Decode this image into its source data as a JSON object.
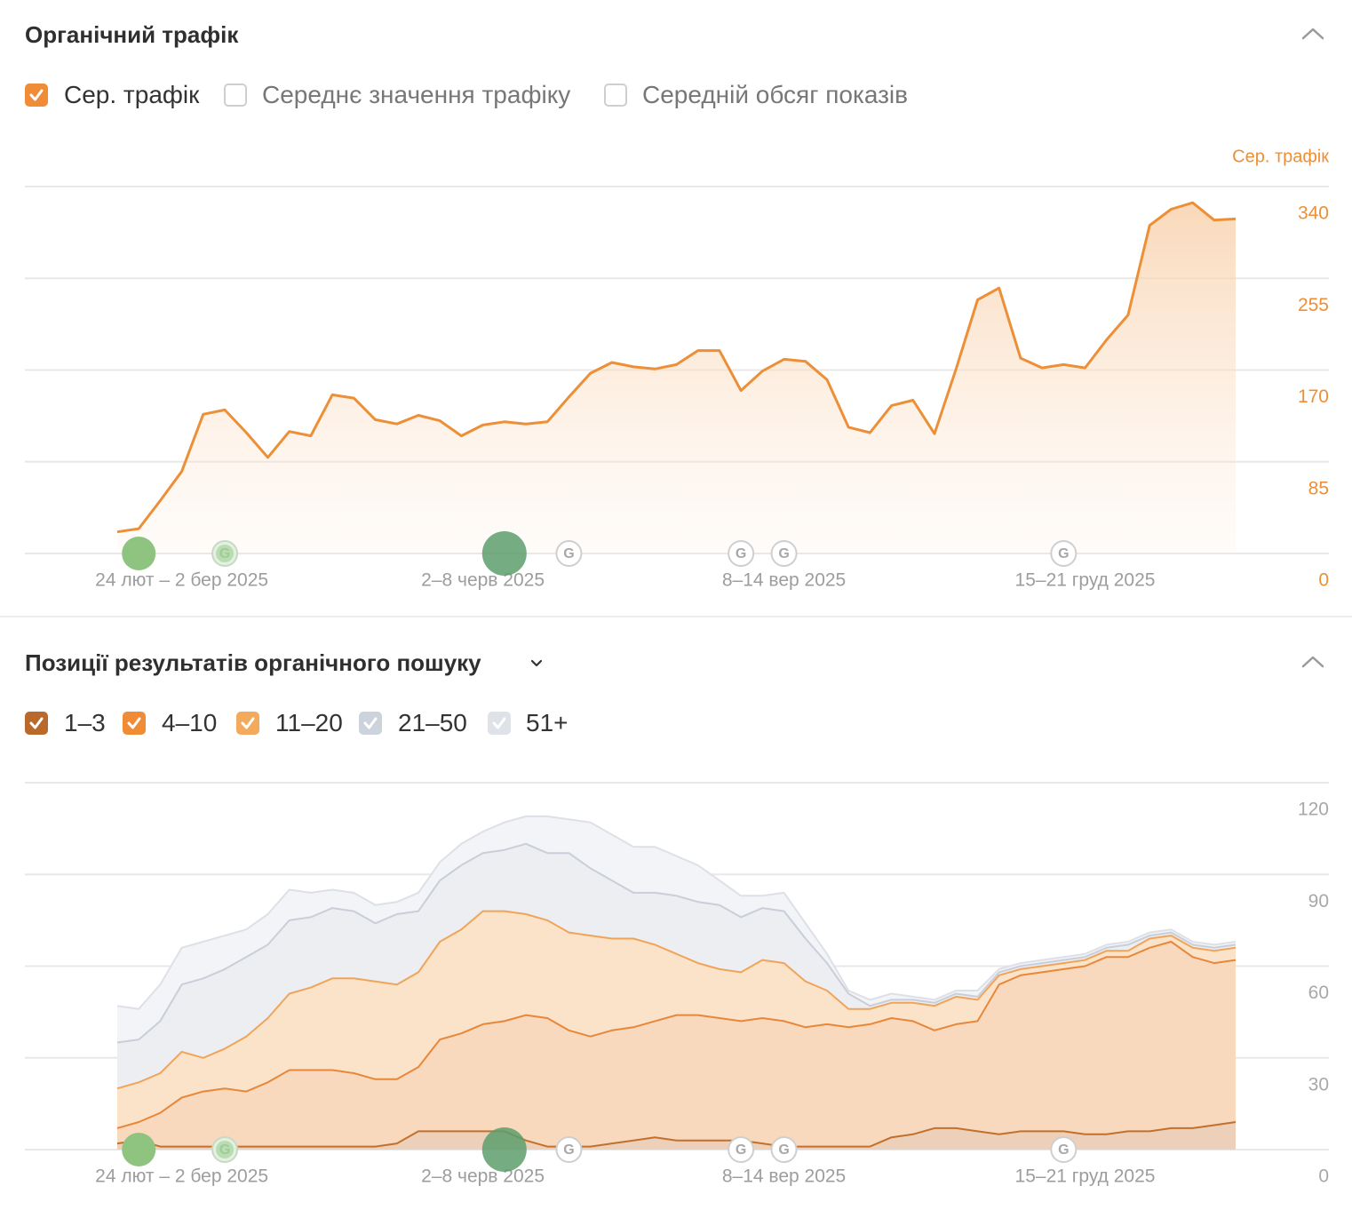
{
  "traffic_section": {
    "title": "Органічний трафік",
    "toggles": [
      {
        "label": "Сер. трафік",
        "checked": true,
        "color": "#ef8c35"
      },
      {
        "label": "Середнє значення трафіку",
        "checked": false
      },
      {
        "label": "Середній обсяг показів",
        "checked": false
      }
    ],
    "collapse_icon": "chevron-up-icon"
  },
  "positions_section": {
    "title": "Позиції результатів органічного пошуку",
    "dropdown_icon": "chevron-down-icon",
    "collapse_icon": "chevron-up-icon",
    "legend": [
      {
        "label": "1–3",
        "checked": true,
        "color": "#b9692b"
      },
      {
        "label": "4–10",
        "checked": true,
        "color": "#ef8c35"
      },
      {
        "label": "11–20",
        "checked": true,
        "color": "#f3aa5c"
      },
      {
        "label": "21–50",
        "checked": true,
        "color": "#cdd3dc"
      },
      {
        "label": "51+",
        "checked": true,
        "color": "#dfe3e9"
      }
    ]
  },
  "chart_data": [
    {
      "type": "area",
      "ylabel": "Сер. трафік",
      "ylim": [
        0,
        340
      ],
      "y_ticks": [
        "0",
        "85",
        "170",
        "255",
        "340"
      ],
      "grid": true,
      "color": "#ed8f36",
      "x_tick_labels": [
        {
          "index": 3,
          "label": "24 лют – 2 бер 2025"
        },
        {
          "index": 17,
          "label": "2–8 черв 2025"
        },
        {
          "index": 31,
          "label": "8–14 вер 2025"
        },
        {
          "index": 45,
          "label": "15–21 груд 2025"
        }
      ],
      "values": [
        20,
        23,
        49,
        76,
        129,
        133,
        112,
        89,
        113,
        109,
        147,
        144,
        124,
        120,
        128,
        123,
        109,
        119,
        122,
        120,
        122,
        145,
        167,
        177,
        173,
        171,
        175,
        188,
        188,
        151,
        169,
        180,
        178,
        161,
        117,
        112,
        137,
        142,
        111,
        171,
        235,
        246,
        181,
        172,
        175,
        172,
        198,
        221,
        304,
        319,
        325,
        309,
        310
      ],
      "annotations": [
        {
          "index": 1,
          "type": "green-dot"
        },
        {
          "index": 5,
          "type": "google-update-faded"
        },
        {
          "index": 18,
          "type": "green-dot-large"
        },
        {
          "index": 21,
          "type": "google-update"
        },
        {
          "index": 29,
          "type": "google-update"
        },
        {
          "index": 31,
          "type": "google-update"
        },
        {
          "index": 44,
          "type": "google-update"
        }
      ]
    },
    {
      "type": "area",
      "stacked": true,
      "ylim": [
        0,
        120
      ],
      "y_ticks": [
        "0",
        "30",
        "60",
        "90",
        "120"
      ],
      "grid": true,
      "x_tick_labels": [
        {
          "index": 3,
          "label": "24 лют – 2 бер 2025"
        },
        {
          "index": 17,
          "label": "2–8 черв 2025"
        },
        {
          "index": 31,
          "label": "8–14 вер 2025"
        },
        {
          "index": 45,
          "label": "15–21 груд 2025"
        }
      ],
      "series": [
        {
          "name": "1–3",
          "fill": "#ecd0b9",
          "line": "#c2702c",
          "values": [
            2,
            3,
            1,
            1,
            1,
            1,
            1,
            1,
            1,
            1,
            1,
            1,
            1,
            2,
            6,
            6,
            6,
            6,
            6,
            3,
            1,
            1,
            1,
            2,
            3,
            4,
            3,
            3,
            3,
            3,
            2,
            1,
            1,
            1,
            1,
            1,
            4,
            5,
            7,
            7,
            6,
            5,
            6,
            6,
            6,
            5,
            5,
            6,
            6,
            7,
            7,
            8,
            9
          ]
        },
        {
          "name": "4–10",
          "fill": "#f9d9bd",
          "line": "#e8873a",
          "values": [
            5,
            6,
            11,
            16,
            18,
            19,
            18,
            21,
            25,
            25,
            25,
            24,
            22,
            21,
            21,
            30,
            32,
            35,
            36,
            41,
            42,
            38,
            36,
            37,
            37,
            38,
            41,
            41,
            40,
            39,
            41,
            41,
            39,
            40,
            39,
            40,
            39,
            37,
            32,
            34,
            36,
            49,
            51,
            52,
            53,
            55,
            58,
            57,
            60,
            61,
            56,
            53,
            53
          ]
        },
        {
          "name": "11–20",
          "fill": "#fbe3ca",
          "line": "#f0a45a",
          "values": [
            13,
            13,
            13,
            15,
            11,
            13,
            18,
            21,
            25,
            27,
            30,
            31,
            32,
            31,
            31,
            32,
            34,
            37,
            36,
            33,
            32,
            32,
            33,
            30,
            29,
            25,
            20,
            17,
            16,
            16,
            19,
            19,
            15,
            11,
            6,
            5,
            5,
            6,
            8,
            9,
            7,
            3,
            2,
            2,
            2,
            2,
            2,
            2,
            3,
            2,
            3,
            4,
            4
          ]
        },
        {
          "name": "21–50",
          "fill": "#eceef2",
          "line": "#c9ced8",
          "values": [
            15,
            14,
            17,
            22,
            26,
            26,
            26,
            24,
            24,
            23,
            23,
            22,
            19,
            23,
            20,
            20,
            21,
            19,
            20,
            23,
            22,
            26,
            22,
            19,
            15,
            17,
            19,
            20,
            21,
            18,
            17,
            17,
            14,
            9,
            5,
            1,
            1,
            1,
            1,
            1,
            1,
            1,
            1,
            1,
            1,
            1,
            1,
            2,
            1,
            1,
            1,
            1,
            1
          ]
        },
        {
          "name": "51+",
          "fill": "#f3f4f7",
          "line": "#dde0e6",
          "values": [
            12,
            10,
            12,
            12,
            12,
            11,
            9,
            10,
            10,
            8,
            6,
            6,
            6,
            4,
            6,
            6,
            7,
            7,
            9,
            9,
            12,
            11,
            15,
            15,
            15,
            15,
            13,
            12,
            8,
            7,
            4,
            6,
            5,
            3,
            1,
            2,
            2,
            1,
            1,
            1,
            2,
            1,
            1,
            1,
            1,
            1,
            1,
            1,
            1,
            1,
            1,
            1,
            1
          ]
        }
      ],
      "annotations": [
        {
          "index": 1,
          "type": "green-dot"
        },
        {
          "index": 5,
          "type": "google-update-faded"
        },
        {
          "index": 18,
          "type": "green-dot-large"
        },
        {
          "index": 21,
          "type": "google-update"
        },
        {
          "index": 29,
          "type": "google-update"
        },
        {
          "index": 31,
          "type": "google-update"
        },
        {
          "index": 44,
          "type": "google-update"
        }
      ]
    }
  ]
}
